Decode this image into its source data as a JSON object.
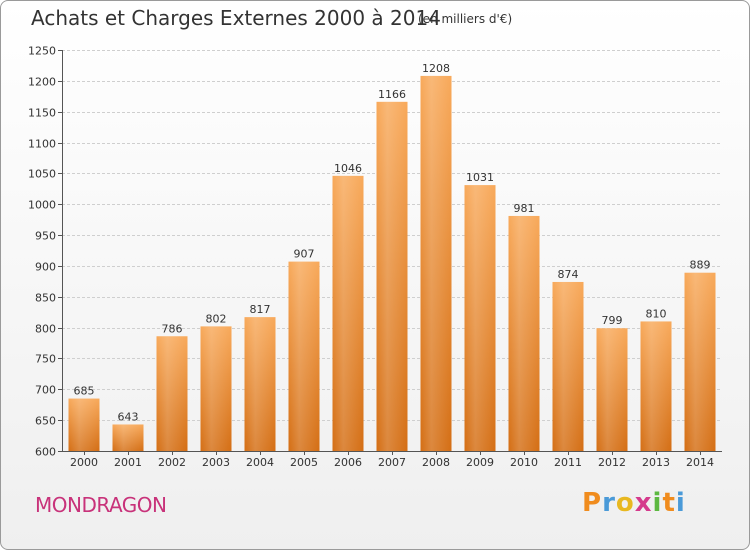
{
  "header": {
    "title": "Achats et Charges Externes 2000 à 2014",
    "subtitle": "(en milliers d'€)"
  },
  "footer": {
    "commune": "MONDRAGON",
    "logo": {
      "letters": [
        "P",
        "r",
        "o",
        "x",
        "i",
        "t",
        "i"
      ],
      "colors": [
        "#f08c1e",
        "#4a9ad8",
        "#e8b820",
        "#d53a8c",
        "#5cb840",
        "#f08c1e",
        "#4a9ad8"
      ]
    }
  },
  "colors": {
    "bar_top": "#f8a95a",
    "bar_bottom": "#d46e14",
    "grid": "#cfcfcf"
  },
  "chart_data": {
    "type": "bar",
    "title": "Achats et Charges Externes 2000 à 2014",
    "subtitle": "(en milliers d'€)",
    "categories": [
      "2000",
      "2001",
      "2002",
      "2003",
      "2004",
      "2005",
      "2006",
      "2007",
      "2008",
      "2009",
      "2010",
      "2011",
      "2012",
      "2013",
      "2014"
    ],
    "values": [
      685,
      643,
      786,
      802,
      817,
      907,
      1046,
      1166,
      1208,
      1031,
      981,
      874,
      799,
      810,
      889
    ],
    "ylim": [
      600,
      1250
    ],
    "yticks": [
      600,
      650,
      700,
      750,
      800,
      850,
      900,
      950,
      1000,
      1050,
      1100,
      1150,
      1200,
      1250
    ],
    "grid": true,
    "xlabel": "",
    "ylabel": ""
  }
}
